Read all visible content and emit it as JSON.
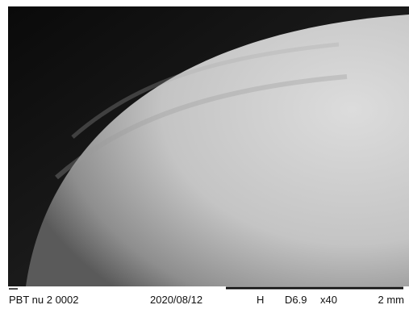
{
  "info_bar": {
    "label": "PBT nu 2 0002",
    "date": "2020/08/12",
    "mode": "H",
    "distance": "D6.9",
    "magnification": "x40",
    "scale": "2 mm"
  }
}
